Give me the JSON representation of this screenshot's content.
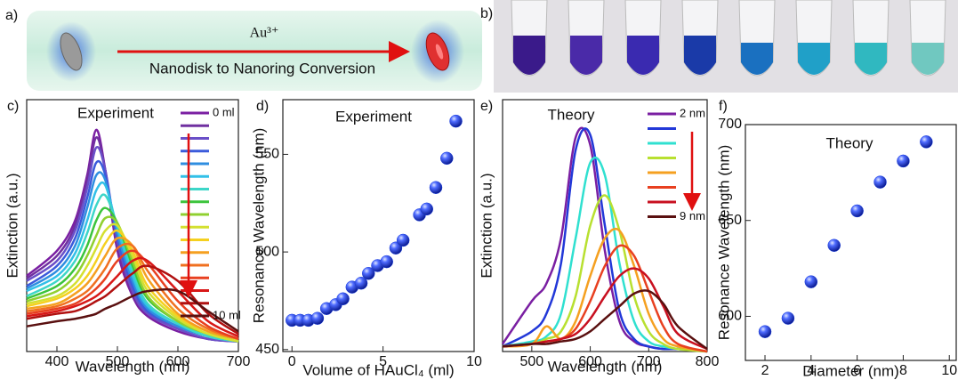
{
  "schematic": {
    "panel_label": "a)",
    "ion": "Au³⁺",
    "caption": "Nanodisk to Nanoring Conversion"
  },
  "photo": {
    "panel_label": "b)"
  },
  "chart_data": [
    {
      "type": "line",
      "panel_label": "c)",
      "title": "Experiment",
      "x_label": "Wavelength (nm)",
      "y_label": "Extinction (a.u.)",
      "xlim": [
        350,
        700
      ],
      "xticks": [
        400,
        500,
        600,
        700
      ],
      "ylim": [
        0,
        1
      ],
      "x": [
        350,
        400,
        430,
        450,
        465,
        480,
        500,
        525,
        550,
        600,
        650,
        700
      ],
      "series": [
        {
          "name": "0 ml",
          "color": "#7a1fa2",
          "values": [
            0.3,
            0.4,
            0.52,
            0.7,
            0.88,
            0.72,
            0.4,
            0.22,
            0.14,
            0.08,
            0.05,
            0.04
          ]
        },
        {
          "name": null,
          "color": "#7030a0",
          "values": [
            0.29,
            0.38,
            0.5,
            0.68,
            0.85,
            0.72,
            0.42,
            0.23,
            0.15,
            0.09,
            0.05,
            0.04
          ]
        },
        {
          "name": null,
          "color": "#6a4fc8",
          "values": [
            0.28,
            0.36,
            0.48,
            0.65,
            0.81,
            0.72,
            0.44,
            0.24,
            0.15,
            0.09,
            0.05,
            0.04
          ]
        },
        {
          "name": null,
          "color": "#3b5bdb",
          "values": [
            0.26,
            0.34,
            0.45,
            0.61,
            0.75,
            0.7,
            0.45,
            0.26,
            0.16,
            0.1,
            0.06,
            0.04
          ]
        },
        {
          "name": null,
          "color": "#2f8ee0",
          "values": [
            0.25,
            0.32,
            0.42,
            0.57,
            0.7,
            0.68,
            0.47,
            0.28,
            0.17,
            0.1,
            0.06,
            0.04
          ]
        },
        {
          "name": null,
          "color": "#32c0e8",
          "values": [
            0.24,
            0.3,
            0.39,
            0.52,
            0.64,
            0.66,
            0.49,
            0.3,
            0.18,
            0.11,
            0.06,
            0.04
          ]
        },
        {
          "name": null,
          "color": "#3dd6c8",
          "values": [
            0.22,
            0.28,
            0.36,
            0.47,
            0.58,
            0.62,
            0.5,
            0.32,
            0.19,
            0.11,
            0.06,
            0.04
          ]
        },
        {
          "name": null,
          "color": "#3cc43c",
          "values": [
            0.21,
            0.26,
            0.33,
            0.42,
            0.52,
            0.57,
            0.51,
            0.34,
            0.21,
            0.12,
            0.07,
            0.04
          ]
        },
        {
          "name": null,
          "color": "#90d030",
          "values": [
            0.2,
            0.24,
            0.3,
            0.38,
            0.46,
            0.53,
            0.51,
            0.36,
            0.22,
            0.12,
            0.07,
            0.04
          ]
        },
        {
          "name": null,
          "color": "#d4e030",
          "values": [
            0.19,
            0.22,
            0.27,
            0.34,
            0.41,
            0.48,
            0.5,
            0.38,
            0.24,
            0.13,
            0.07,
            0.04
          ]
        },
        {
          "name": null,
          "color": "#f5d020",
          "values": [
            0.18,
            0.21,
            0.25,
            0.3,
            0.36,
            0.43,
            0.48,
            0.4,
            0.26,
            0.14,
            0.08,
            0.05
          ]
        },
        {
          "name": null,
          "color": "#f5a020",
          "values": [
            0.17,
            0.19,
            0.23,
            0.27,
            0.32,
            0.38,
            0.45,
            0.42,
            0.29,
            0.15,
            0.08,
            0.05
          ]
        },
        {
          "name": null,
          "color": "#f07020",
          "values": [
            0.16,
            0.18,
            0.21,
            0.24,
            0.28,
            0.33,
            0.41,
            0.42,
            0.32,
            0.17,
            0.09,
            0.05
          ]
        },
        {
          "name": null,
          "color": "#e84020",
          "values": [
            0.15,
            0.17,
            0.19,
            0.22,
            0.25,
            0.29,
            0.36,
            0.4,
            0.35,
            0.2,
            0.1,
            0.05
          ]
        },
        {
          "name": null,
          "color": "#d81818",
          "values": [
            0.14,
            0.16,
            0.18,
            0.2,
            0.22,
            0.25,
            0.3,
            0.36,
            0.36,
            0.24,
            0.12,
            0.06
          ]
        },
        {
          "name": null,
          "color": "#b01010",
          "values": [
            0.13,
            0.15,
            0.16,
            0.18,
            0.2,
            0.22,
            0.26,
            0.31,
            0.34,
            0.28,
            0.15,
            0.07
          ]
        },
        {
          "name": "10 ml",
          "color": "#5a1010",
          "values": [
            0.1,
            0.12,
            0.13,
            0.14,
            0.15,
            0.17,
            0.19,
            0.22,
            0.24,
            0.24,
            0.16,
            0.08
          ]
        }
      ]
    },
    {
      "type": "scatter",
      "panel_label": "d)",
      "title": "Experiment",
      "x_label": "Volume of HAuCl₄ (ml)",
      "y_label": "Resonance Wavelength (nm)",
      "xlim": [
        -0.5,
        10
      ],
      "xticks": [
        0,
        5,
        10
      ],
      "ylim": [
        449,
        578
      ],
      "yticks": [
        450,
        500,
        550
      ],
      "color": "#1a3fe0",
      "x": [
        0,
        0.45,
        0.9,
        1.4,
        1.9,
        2.4,
        2.8,
        3.3,
        3.8,
        4.2,
        4.7,
        5.2,
        5.7,
        6.1,
        7.0,
        7.4,
        7.9,
        8.5,
        9.0
      ],
      "values": [
        465,
        465,
        465,
        466,
        471,
        473,
        476,
        482,
        484,
        489,
        493,
        495,
        502,
        506,
        519,
        522,
        533,
        548,
        567
      ]
    },
    {
      "type": "line",
      "panel_label": "e)",
      "title": "Theory",
      "x_label": "Wavelength (nm)",
      "y_label": "Extinction (a.u.)",
      "xlim": [
        450,
        800
      ],
      "xticks": [
        500,
        600,
        700,
        800
      ],
      "ylim": [
        0,
        1
      ],
      "x": [
        450,
        500,
        525,
        550,
        575,
        600,
        625,
        650,
        675,
        700,
        725,
        750,
        800
      ],
      "series": [
        {
          "name": "2 nm",
          "color": "#7a1fa2",
          "values": [
            0.03,
            0.2,
            0.27,
            0.45,
            0.85,
            0.82,
            0.4,
            0.12,
            0.04,
            0.02,
            0.01,
            0.01,
            0.0
          ]
        },
        {
          "name": null,
          "color": "#2238d8",
          "values": [
            0.02,
            0.08,
            0.15,
            0.35,
            0.8,
            0.86,
            0.5,
            0.16,
            0.05,
            0.02,
            0.01,
            0.01,
            0.0
          ]
        },
        {
          "name": null,
          "color": "#30e0d0",
          "values": [
            0.02,
            0.04,
            0.06,
            0.15,
            0.45,
            0.75,
            0.7,
            0.35,
            0.12,
            0.04,
            0.02,
            0.01,
            0.0
          ]
        },
        {
          "name": null,
          "color": "#b8e030",
          "values": [
            0.02,
            0.03,
            0.05,
            0.08,
            0.22,
            0.5,
            0.62,
            0.48,
            0.22,
            0.08,
            0.03,
            0.01,
            0.0
          ]
        },
        {
          "name": null,
          "color": "#f5a020",
          "values": [
            0.02,
            0.03,
            0.1,
            0.05,
            0.12,
            0.3,
            0.45,
            0.48,
            0.34,
            0.15,
            0.05,
            0.02,
            0.0
          ]
        },
        {
          "name": null,
          "color": "#e84020",
          "values": [
            0.02,
            0.03,
            0.04,
            0.05,
            0.09,
            0.2,
            0.34,
            0.42,
            0.38,
            0.24,
            0.1,
            0.03,
            0.0
          ]
        },
        {
          "name": null,
          "color": "#c81020",
          "values": [
            0.02,
            0.03,
            0.04,
            0.05,
            0.07,
            0.13,
            0.22,
            0.3,
            0.33,
            0.29,
            0.18,
            0.07,
            0.01
          ]
        },
        {
          "name": "9 nm",
          "color": "#5a1010",
          "values": [
            0.02,
            0.03,
            0.03,
            0.04,
            0.05,
            0.08,
            0.13,
            0.18,
            0.23,
            0.24,
            0.19,
            0.1,
            0.01
          ]
        }
      ]
    },
    {
      "type": "scatter",
      "panel_label": "f)",
      "title": "Theory",
      "x_label": "Diameter (nm)",
      "y_label": "Resonance Wavelength (nm)",
      "xlim": [
        1.15,
        10.3
      ],
      "xticks": [
        2,
        4,
        6,
        8,
        10
      ],
      "ylim": [
        577,
        700
      ],
      "yticks": [
        600,
        650,
        700
      ],
      "color": "#1a3fe0",
      "x": [
        2,
        3,
        4,
        5,
        6,
        7,
        8,
        9
      ],
      "values": [
        592,
        599,
        618,
        637,
        655,
        670,
        681,
        691
      ]
    }
  ]
}
